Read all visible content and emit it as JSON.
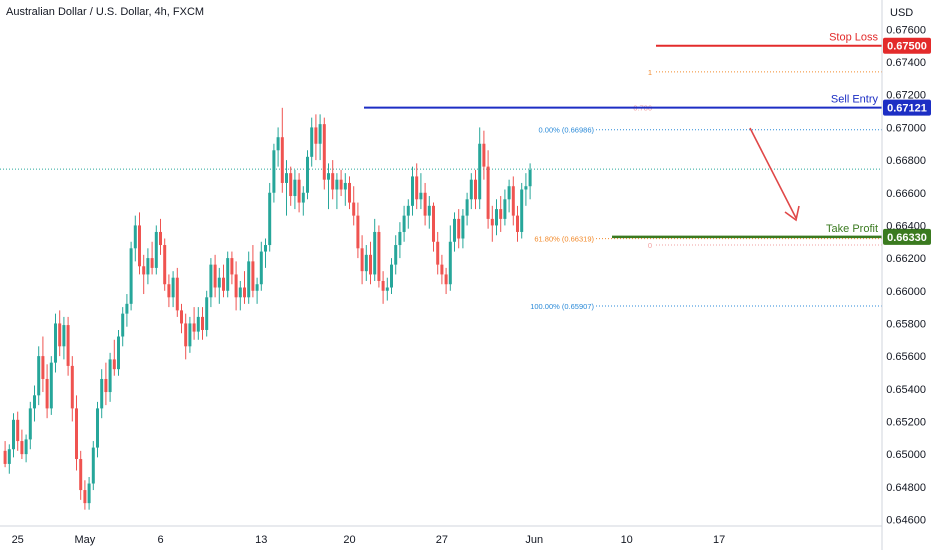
{
  "header": {
    "symbol_line": "Australian Dollar / U.S. Dollar, 4h, FXCM"
  },
  "price_axis": {
    "currency": "USD",
    "ticks": [
      "0.67600",
      "0.67400",
      "0.67200",
      "0.67000",
      "0.66800",
      "0.66600",
      "0.66400",
      "0.66200",
      "0.66000",
      "0.65800",
      "0.65600",
      "0.65400",
      "0.65200",
      "0.65000",
      "0.64800",
      "0.64600"
    ]
  },
  "time_axis": {
    "ticks": [
      {
        "label": "25",
        "index": 3
      },
      {
        "label": "May",
        "index": 19
      },
      {
        "label": "6",
        "index": 37
      },
      {
        "label": "13",
        "index": 61
      },
      {
        "label": "20",
        "index": 82
      },
      {
        "label": "27",
        "index": 104
      },
      {
        "label": "Jun",
        "index": 126
      },
      {
        "label": "10",
        "index": 148
      },
      {
        "label": "17",
        "index": 170
      }
    ]
  },
  "levels": {
    "stop_loss": {
      "label": "Stop Loss",
      "price": 0.675,
      "price_text": "0.67500",
      "color": "#e32b2b"
    },
    "sell_entry": {
      "label": "Sell Entry",
      "price": 0.67121,
      "price_text": "0.67121",
      "color": "#1c2ec4"
    },
    "take_profit": {
      "label": "Take Profit",
      "price": 0.6633,
      "price_text": "0.66330",
      "color": "#3a7a1f"
    },
    "current_price": 0.66745
  },
  "fib": {
    "levels": [
      {
        "label": "1",
        "price": 0.6734,
        "color": "#f28a2b"
      },
      {
        "label": "0.786",
        "price": 0.67121,
        "color": "#f2a0a0"
      },
      {
        "label": "0.00% (0.66986)",
        "price": 0.66986,
        "color": "#2a8ad8"
      },
      {
        "label": "61.80% (0.66319)",
        "price": 0.66319,
        "color": "#f28a2b"
      },
      {
        "label": "0",
        "price": 0.6628,
        "color": "#f2a0a0"
      },
      {
        "label": "100.00% (0.65907)",
        "price": 0.65907,
        "color": "#2a8ad8"
      }
    ]
  },
  "colors": {
    "up": "#26a69a",
    "down": "#ef5350",
    "axis_text": "#131722",
    "grid": "#e0e3eb"
  },
  "chart_data": {
    "type": "candlestick",
    "title": "Australian Dollar / U.S. Dollar, 4h, FXCM",
    "ylabel": "USD",
    "ylim": [
      0.6456,
      0.6778
    ],
    "candles": [
      [
        0.6502,
        0.6508,
        0.6492,
        0.6494
      ],
      [
        0.6494,
        0.6506,
        0.6488,
        0.6503
      ],
      [
        0.6503,
        0.6525,
        0.6498,
        0.6521
      ],
      [
        0.6521,
        0.6526,
        0.6502,
        0.6508
      ],
      [
        0.6508,
        0.6515,
        0.6497,
        0.65
      ],
      [
        0.65,
        0.6512,
        0.6495,
        0.6509
      ],
      [
        0.6509,
        0.6532,
        0.6503,
        0.6528
      ],
      [
        0.6528,
        0.6542,
        0.652,
        0.6536
      ],
      [
        0.6536,
        0.6566,
        0.653,
        0.656
      ],
      [
        0.656,
        0.6572,
        0.6538,
        0.6546
      ],
      [
        0.6546,
        0.6555,
        0.6522,
        0.6528
      ],
      [
        0.6528,
        0.656,
        0.6524,
        0.6556
      ],
      [
        0.6556,
        0.6586,
        0.655,
        0.658
      ],
      [
        0.658,
        0.6588,
        0.656,
        0.6566
      ],
      [
        0.6566,
        0.6584,
        0.6558,
        0.6579
      ],
      [
        0.6579,
        0.6584,
        0.6548,
        0.6554
      ],
      [
        0.6554,
        0.656,
        0.652,
        0.6528
      ],
      [
        0.6528,
        0.6536,
        0.649,
        0.6497
      ],
      [
        0.6497,
        0.6502,
        0.6472,
        0.6478
      ],
      [
        0.6478,
        0.6484,
        0.6466,
        0.647
      ],
      [
        0.647,
        0.6486,
        0.6466,
        0.6482
      ],
      [
        0.6482,
        0.6508,
        0.6478,
        0.6504
      ],
      [
        0.6504,
        0.6532,
        0.6498,
        0.6528
      ],
      [
        0.6528,
        0.6552,
        0.6522,
        0.6546
      ],
      [
        0.6546,
        0.6556,
        0.653,
        0.6538
      ],
      [
        0.6538,
        0.6562,
        0.6532,
        0.6558
      ],
      [
        0.6558,
        0.657,
        0.6548,
        0.6552
      ],
      [
        0.6552,
        0.6576,
        0.6548,
        0.6572
      ],
      [
        0.6572,
        0.659,
        0.6566,
        0.6586
      ],
      [
        0.6586,
        0.6598,
        0.6578,
        0.6592
      ],
      [
        0.6592,
        0.663,
        0.6588,
        0.6626
      ],
      [
        0.6626,
        0.6646,
        0.6618,
        0.664
      ],
      [
        0.664,
        0.6648,
        0.661,
        0.6615
      ],
      [
        0.6615,
        0.6622,
        0.6598,
        0.661
      ],
      [
        0.661,
        0.6626,
        0.6604,
        0.662
      ],
      [
        0.662,
        0.663,
        0.661,
        0.6614
      ],
      [
        0.6614,
        0.664,
        0.661,
        0.6636
      ],
      [
        0.6636,
        0.6644,
        0.6622,
        0.6628
      ],
      [
        0.6628,
        0.6632,
        0.66,
        0.6604
      ],
      [
        0.6604,
        0.661,
        0.659,
        0.6596
      ],
      [
        0.6596,
        0.6612,
        0.659,
        0.6608
      ],
      [
        0.6608,
        0.6614,
        0.6584,
        0.6588
      ],
      [
        0.6588,
        0.6592,
        0.6574,
        0.658
      ],
      [
        0.658,
        0.6586,
        0.6558,
        0.6566
      ],
      [
        0.6566,
        0.6584,
        0.6562,
        0.658
      ],
      [
        0.658,
        0.659,
        0.657,
        0.6575
      ],
      [
        0.6575,
        0.659,
        0.657,
        0.6584
      ],
      [
        0.6584,
        0.659,
        0.657,
        0.6576
      ],
      [
        0.6576,
        0.66,
        0.6572,
        0.6596
      ],
      [
        0.6596,
        0.662,
        0.659,
        0.6616
      ],
      [
        0.6616,
        0.6622,
        0.6596,
        0.6602
      ],
      [
        0.6602,
        0.6614,
        0.6592,
        0.6608
      ],
      [
        0.6608,
        0.6616,
        0.6596,
        0.66
      ],
      [
        0.66,
        0.6624,
        0.6596,
        0.662
      ],
      [
        0.662,
        0.6624,
        0.6604,
        0.661
      ],
      [
        0.661,
        0.6618,
        0.6588,
        0.6596
      ],
      [
        0.6596,
        0.6606,
        0.6588,
        0.6602
      ],
      [
        0.6602,
        0.6612,
        0.6592,
        0.6596
      ],
      [
        0.6596,
        0.6624,
        0.6592,
        0.6618
      ],
      [
        0.6618,
        0.6628,
        0.6596,
        0.66
      ],
      [
        0.66,
        0.6608,
        0.6592,
        0.6604
      ],
      [
        0.6604,
        0.663,
        0.66,
        0.6624
      ],
      [
        0.6624,
        0.6632,
        0.6614,
        0.6628
      ],
      [
        0.6628,
        0.6666,
        0.6624,
        0.666
      ],
      [
        0.666,
        0.669,
        0.6654,
        0.6686
      ],
      [
        0.6686,
        0.67,
        0.6676,
        0.6694
      ],
      [
        0.6694,
        0.6712,
        0.666,
        0.6666
      ],
      [
        0.6666,
        0.668,
        0.6646,
        0.6672
      ],
      [
        0.6672,
        0.6676,
        0.6652,
        0.6658
      ],
      [
        0.6658,
        0.6674,
        0.665,
        0.6668
      ],
      [
        0.6668,
        0.6672,
        0.6648,
        0.6654
      ],
      [
        0.6654,
        0.6664,
        0.6646,
        0.666
      ],
      [
        0.666,
        0.6686,
        0.6656,
        0.6682
      ],
      [
        0.6682,
        0.6706,
        0.6676,
        0.67
      ],
      [
        0.67,
        0.6708,
        0.668,
        0.669
      ],
      [
        0.669,
        0.6708,
        0.668,
        0.6702
      ],
      [
        0.6702,
        0.6706,
        0.6662,
        0.6668
      ],
      [
        0.6668,
        0.6678,
        0.665,
        0.6672
      ],
      [
        0.6672,
        0.668,
        0.6656,
        0.6662
      ],
      [
        0.6662,
        0.6672,
        0.665,
        0.6668
      ],
      [
        0.6668,
        0.6674,
        0.6658,
        0.6662
      ],
      [
        0.6662,
        0.6672,
        0.6652,
        0.6666
      ],
      [
        0.6666,
        0.667,
        0.665,
        0.6654
      ],
      [
        0.6654,
        0.6664,
        0.664,
        0.6646
      ],
      [
        0.6646,
        0.6654,
        0.662,
        0.6626
      ],
      [
        0.6626,
        0.6634,
        0.6604,
        0.6612
      ],
      [
        0.6612,
        0.6628,
        0.6606,
        0.6622
      ],
      [
        0.6622,
        0.663,
        0.6604,
        0.661
      ],
      [
        0.661,
        0.6644,
        0.6606,
        0.6636
      ],
      [
        0.6636,
        0.664,
        0.6602,
        0.6606
      ],
      [
        0.6606,
        0.6612,
        0.6592,
        0.66
      ],
      [
        0.66,
        0.6608,
        0.6594,
        0.6602
      ],
      [
        0.6602,
        0.662,
        0.6598,
        0.6616
      ],
      [
        0.6616,
        0.6634,
        0.661,
        0.6628
      ],
      [
        0.6628,
        0.6642,
        0.662,
        0.6636
      ],
      [
        0.6636,
        0.6652,
        0.663,
        0.6646
      ],
      [
        0.6646,
        0.6656,
        0.6638,
        0.6652
      ],
      [
        0.6652,
        0.6676,
        0.6646,
        0.667
      ],
      [
        0.667,
        0.6678,
        0.665,
        0.6656
      ],
      [
        0.6656,
        0.6672,
        0.665,
        0.666
      ],
      [
        0.666,
        0.6666,
        0.664,
        0.6646
      ],
      [
        0.6646,
        0.6658,
        0.6638,
        0.6652
      ],
      [
        0.6652,
        0.6654,
        0.6624,
        0.663
      ],
      [
        0.663,
        0.6636,
        0.661,
        0.6616
      ],
      [
        0.6616,
        0.6622,
        0.6604,
        0.661
      ],
      [
        0.661,
        0.6614,
        0.6598,
        0.6604
      ],
      [
        0.6604,
        0.664,
        0.66,
        0.663
      ],
      [
        0.663,
        0.6648,
        0.6624,
        0.6644
      ],
      [
        0.6644,
        0.665,
        0.6626,
        0.6632
      ],
      [
        0.6632,
        0.665,
        0.6626,
        0.6646
      ],
      [
        0.6646,
        0.666,
        0.664,
        0.6656
      ],
      [
        0.6656,
        0.6672,
        0.665,
        0.6668
      ],
      [
        0.6668,
        0.6674,
        0.665,
        0.6656
      ],
      [
        0.6656,
        0.67,
        0.665,
        0.669
      ],
      [
        0.669,
        0.6698,
        0.6668,
        0.6676
      ],
      [
        0.6676,
        0.6686,
        0.6638,
        0.6644
      ],
      [
        0.6644,
        0.6652,
        0.663,
        0.664
      ],
      [
        0.664,
        0.6656,
        0.6634,
        0.665
      ],
      [
        0.665,
        0.6658,
        0.6636,
        0.6644
      ],
      [
        0.6644,
        0.6662,
        0.664,
        0.6656
      ],
      [
        0.6656,
        0.6668,
        0.6648,
        0.6664
      ],
      [
        0.6664,
        0.667,
        0.664,
        0.6646
      ],
      [
        0.6646,
        0.6652,
        0.663,
        0.6636
      ],
      [
        0.6636,
        0.6666,
        0.6632,
        0.6662
      ],
      [
        0.6662,
        0.6672,
        0.6652,
        0.6664
      ],
      [
        0.6664,
        0.6678,
        0.6656,
        0.6674
      ]
    ],
    "annotations": [
      "Stop Loss",
      "Sell Entry",
      "Take Profit"
    ]
  }
}
